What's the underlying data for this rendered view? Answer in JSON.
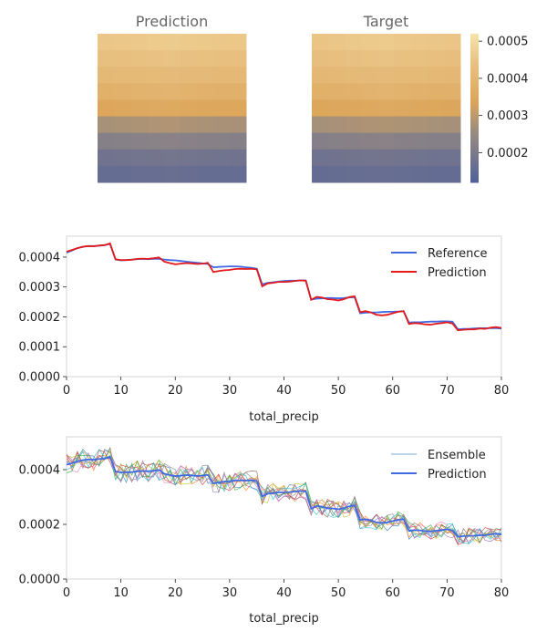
{
  "heatmaps": {
    "panels": [
      {
        "title": "Prediction",
        "rows": [
          [
            0.000455,
            0.000458,
            0.000462,
            0.000465,
            0.000467,
            0.000463,
            0.00046,
            0.000457,
            0.000456
          ],
          [
            0.000435,
            0.000438,
            0.000442,
            0.000445,
            0.000447,
            0.000443,
            0.00044,
            0.000437,
            0.000436
          ],
          [
            0.00041,
            0.000413,
            0.000417,
            0.00042,
            0.000422,
            0.000418,
            0.000415,
            0.000412,
            0.000411
          ],
          [
            0.000383,
            0.000386,
            0.00039,
            0.000393,
            0.000395,
            0.000391,
            0.000388,
            0.000385,
            0.000384
          ],
          [
            0.000345,
            0.000348,
            0.000352,
            0.000355,
            0.000357,
            0.000353,
            0.00035,
            0.000347,
            0.000346
          ],
          [
            0.000275,
            0.000278,
            0.000282,
            0.000284,
            0.000286,
            0.000282,
            0.000279,
            0.000277,
            0.000276
          ],
          [
            0.00022,
            0.000222,
            0.000225,
            0.000227,
            0.000229,
            0.000225,
            0.000223,
            0.000221,
            0.00022
          ],
          [
            0.000182,
            0.000184,
            0.000186,
            0.000188,
            0.000189,
            0.000186,
            0.000184,
            0.000183,
            0.000182
          ],
          [
            0.00016,
            0.000162,
            0.000164,
            0.000166,
            0.000167,
            0.000164,
            0.000162,
            0.000161,
            0.00016
          ]
        ]
      },
      {
        "title": "Target",
        "rows": [
          [
            0.00045,
            0.000455,
            0.00046,
            0.000464,
            0.000466,
            0.000462,
            0.000458,
            0.000455,
            0.000452
          ],
          [
            0.000432,
            0.000437,
            0.000441,
            0.000444,
            0.000446,
            0.000442,
            0.000439,
            0.000436,
            0.000434
          ],
          [
            0.000408,
            0.000412,
            0.000416,
            0.000419,
            0.000421,
            0.000417,
            0.000414,
            0.000411,
            0.000409
          ],
          [
            0.00038,
            0.000384,
            0.000388,
            0.000392,
            0.000394,
            0.00039,
            0.000387,
            0.000384,
            0.000382
          ],
          [
            0.000343,
            0.000347,
            0.000351,
            0.000354,
            0.000356,
            0.000352,
            0.000349,
            0.000346,
            0.000344
          ],
          [
            0.000272,
            0.000276,
            0.00028,
            0.000283,
            0.000285,
            0.000281,
            0.000278,
            0.000275,
            0.000273
          ],
          [
            0.000218,
            0.000221,
            0.000224,
            0.000226,
            0.000228,
            0.000224,
            0.000222,
            0.00022,
            0.000219
          ],
          [
            0.00018,
            0.000182,
            0.000185,
            0.000187,
            0.000188,
            0.000185,
            0.000183,
            0.000181,
            0.00018
          ],
          [
            0.000158,
            0.00016,
            0.000163,
            0.000165,
            0.000166,
            0.000163,
            0.000161,
            0.000159,
            0.000158
          ]
        ]
      }
    ],
    "colorbar": {
      "ticks": [
        "0.0005",
        "0.0004",
        "0.0003",
        "0.0002"
      ],
      "tick_values": [
        0.0005,
        0.0004,
        0.0003,
        0.0002
      ],
      "vmin": 0.00012,
      "vmax": 0.00052
    }
  },
  "chart_data": [
    {
      "type": "line",
      "xlabel": "total_precip",
      "xlim": [
        0,
        80
      ],
      "ylim": [
        0,
        0.00047
      ],
      "xticks": [
        "0",
        "10",
        "20",
        "30",
        "40",
        "50",
        "60",
        "70",
        "80"
      ],
      "yticks": [
        "0.0000",
        "0.0001",
        "0.0002",
        "0.0003",
        "0.0004"
      ],
      "x": [
        0,
        1,
        2,
        3,
        4,
        5,
        6,
        7,
        8,
        9,
        10,
        11,
        12,
        13,
        14,
        15,
        16,
        17,
        18,
        19,
        20,
        21,
        22,
        23,
        24,
        25,
        26,
        27,
        28,
        29,
        30,
        31,
        32,
        33,
        34,
        35,
        36,
        37,
        38,
        39,
        40,
        41,
        42,
        43,
        44,
        45,
        46,
        47,
        48,
        49,
        50,
        51,
        52,
        53,
        54,
        55,
        56,
        57,
        58,
        59,
        60,
        61,
        62,
        63,
        64,
        65,
        66,
        67,
        68,
        69,
        70,
        71,
        72,
        73,
        74,
        75,
        76,
        77,
        78,
        79,
        80
      ],
      "legend": "top-right",
      "series": [
        {
          "name": "Reference",
          "values": [
            0.000415,
            0.000422,
            0.00043,
            0.000434,
            0.000437,
            0.000437,
            0.000438,
            0.00044,
            0.000444,
            0.000392,
            0.000389,
            0.00039,
            0.000392,
            0.000393,
            0.000394,
            0.000393,
            0.000394,
            0.000394,
            0.000392,
            0.00039,
            0.000389,
            0.000387,
            0.000385,
            0.000383,
            0.000381,
            0.000379,
            0.000377,
            0.000366,
            0.000367,
            0.000368,
            0.000369,
            0.000369,
            0.000368,
            0.000366,
            0.000364,
            0.000361,
            0.000309,
            0.000314,
            0.000316,
            0.000318,
            0.00032,
            0.000321,
            0.000321,
            0.000322,
            0.000322,
            0.000258,
            0.000261,
            0.000262,
            0.000263,
            0.000263,
            0.000262,
            0.000263,
            0.000265,
            0.000266,
            0.000212,
            0.000214,
            0.000215,
            0.000215,
            0.000216,
            0.000217,
            0.000217,
            0.000218,
            0.000219,
            0.000181,
            0.000182,
            0.000182,
            0.000183,
            0.000184,
            0.000184,
            0.000185,
            0.000185,
            0.000184,
            0.000158,
            0.00016,
            0.00016,
            0.000161,
            0.000162,
            0.000162,
            0.000162,
            0.000162,
            0.000161
          ]
        },
        {
          "name": "Prediction",
          "values": [
            0.000418,
            0.000424,
            0.00043,
            0.000435,
            0.000437,
            0.000436,
            0.000439,
            0.00044,
            0.000446,
            0.000393,
            0.00039,
            0.00039,
            0.000391,
            0.000394,
            0.000395,
            0.000394,
            0.000396,
            0.000399,
            0.000385,
            0.00038,
            0.000376,
            0.000378,
            0.00038,
            0.000379,
            0.000377,
            0.000378,
            0.000381,
            0.00035,
            0.000353,
            0.000356,
            0.000357,
            0.00036,
            0.000361,
            0.00036,
            0.000361,
            0.000359,
            0.000302,
            0.000312,
            0.000314,
            0.000317,
            0.000317,
            0.000318,
            0.00032,
            0.000322,
            0.000321,
            0.000257,
            0.000267,
            0.000265,
            0.000259,
            0.000258,
            0.000255,
            0.000259,
            0.000266,
            0.000269,
            0.000216,
            0.000219,
            0.000215,
            0.000207,
            0.000205,
            0.000207,
            0.000212,
            0.000217,
            0.000219,
            0.000176,
            0.000179,
            0.000178,
            0.000175,
            0.000174,
            0.000177,
            0.000179,
            0.000182,
            0.000178,
            0.000155,
            0.000157,
            0.000158,
            0.000158,
            0.000161,
            0.00016,
            0.000164,
            0.000166,
            0.000163
          ]
        }
      ]
    },
    {
      "type": "line",
      "xlabel": "total_precip",
      "xlim": [
        0,
        80
      ],
      "ylim": [
        0,
        0.00052
      ],
      "xticks": [
        "0",
        "10",
        "20",
        "30",
        "40",
        "50",
        "60",
        "70",
        "80"
      ],
      "yticks": [
        "0.0000",
        "0.0002",
        "0.0004"
      ],
      "x": [
        0,
        1,
        2,
        3,
        4,
        5,
        6,
        7,
        8,
        9,
        10,
        11,
        12,
        13,
        14,
        15,
        16,
        17,
        18,
        19,
        20,
        21,
        22,
        23,
        24,
        25,
        26,
        27,
        28,
        29,
        30,
        31,
        32,
        33,
        34,
        35,
        36,
        37,
        38,
        39,
        40,
        41,
        42,
        43,
        44,
        45,
        46,
        47,
        48,
        49,
        50,
        51,
        52,
        53,
        54,
        55,
        56,
        57,
        58,
        59,
        60,
        61,
        62,
        63,
        64,
        65,
        66,
        67,
        68,
        69,
        70,
        71,
        72,
        73,
        74,
        75,
        76,
        77,
        78,
        79,
        80
      ],
      "legend": "top-right",
      "ensemble": {
        "name": "Ensemble",
        "members": 10,
        "spread": 4e-05,
        "colors": [
          "#1f77b4",
          "#ff7f0e",
          "#2ca02c",
          "#d62728",
          "#9467bd",
          "#8c564b",
          "#e377c2",
          "#7f7f7f",
          "#bcbd22",
          "#17becf"
        ]
      },
      "series": [
        {
          "name": "Prediction",
          "values": [
            0.000418,
            0.000424,
            0.00043,
            0.000435,
            0.000437,
            0.000436,
            0.000439,
            0.00044,
            0.000446,
            0.000393,
            0.00039,
            0.00039,
            0.000391,
            0.000394,
            0.000395,
            0.000394,
            0.000396,
            0.000399,
            0.000385,
            0.00038,
            0.000376,
            0.000378,
            0.00038,
            0.000379,
            0.000377,
            0.000378,
            0.000381,
            0.00035,
            0.000353,
            0.000356,
            0.000357,
            0.00036,
            0.000361,
            0.00036,
            0.000361,
            0.000359,
            0.000302,
            0.000312,
            0.000314,
            0.000317,
            0.000317,
            0.000318,
            0.00032,
            0.000322,
            0.000321,
            0.000257,
            0.000267,
            0.000265,
            0.000259,
            0.000258,
            0.000255,
            0.000259,
            0.000266,
            0.000269,
            0.000216,
            0.000219,
            0.000215,
            0.000207,
            0.000205,
            0.000207,
            0.000212,
            0.000217,
            0.000219,
            0.000176,
            0.000179,
            0.000178,
            0.000175,
            0.000174,
            0.000177,
            0.000179,
            0.000182,
            0.000178,
            0.000155,
            0.000157,
            0.000158,
            0.000158,
            0.000161,
            0.00016,
            0.000164,
            0.000166,
            0.000163
          ]
        }
      ]
    }
  ],
  "colors": {
    "reference": "#4169e1",
    "prediction": "#e31a1c",
    "ensemble_prediction": "#4169e1",
    "axis": "#cccccc",
    "text": "#222222",
    "title": "#666666"
  }
}
